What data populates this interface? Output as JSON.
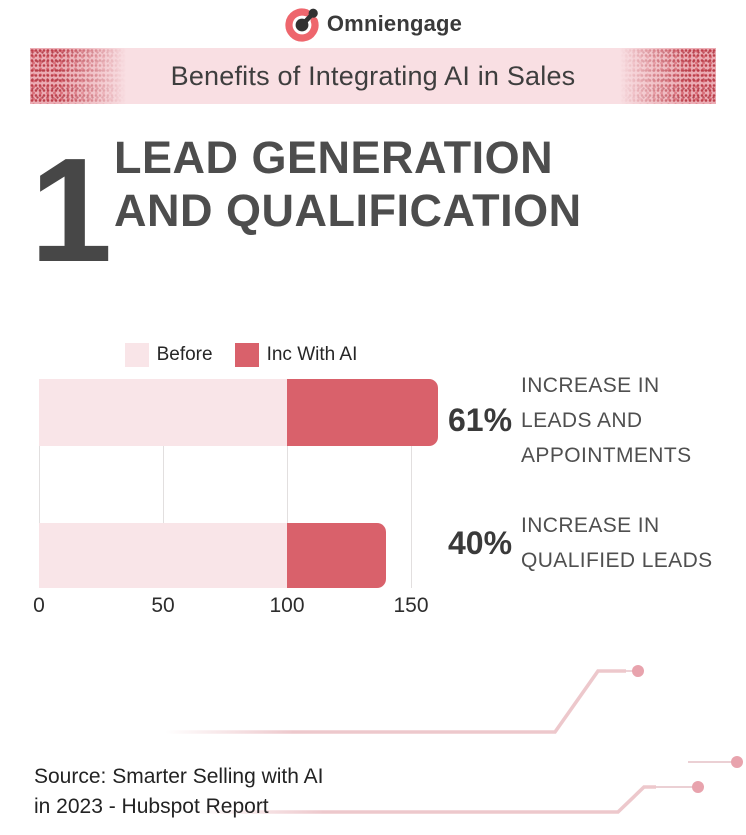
{
  "brand": {
    "name": "Omniengage",
    "logo_icon": "linked-nodes-ring",
    "logo_ring_color": "#ee666d",
    "logo_node_color": "#323232"
  },
  "banner": {
    "title": "Benefits of Integrating AI in Sales",
    "bg_color": "#f9dfe3",
    "edge_spray_color": "#cb5560"
  },
  "section": {
    "number": "1",
    "title_line1": "LEAD GENERATION",
    "title_line2": "AND QUALIFICATION"
  },
  "chart_data": {
    "type": "bar",
    "orientation": "horizontal",
    "stacked": true,
    "categories": [
      "Leads and appointments",
      "Qualified leads"
    ],
    "series": [
      {
        "name": "Before",
        "color": "#f9e5e8",
        "values": [
          100,
          100
        ]
      },
      {
        "name": "Inc With AI",
        "color": "#d9616b",
        "values": [
          61,
          40
        ]
      }
    ],
    "x_ticks": [
      0,
      50,
      100,
      150
    ],
    "xlim": [
      0,
      163
    ],
    "grid": true,
    "legend_position": "top",
    "gridline_color": "#e2dfdf"
  },
  "callouts": [
    {
      "value": "61%",
      "label": "INCREASE IN LEADS AND APPOINTMENTS"
    },
    {
      "value": "40%",
      "label": "INCREASE IN QUALIFIED LEADS"
    }
  ],
  "source": {
    "line1": "Source: Smarter Selling with AI",
    "line2": "in 2023 - Hubspot Report"
  },
  "decor": {
    "trace_color": "#edc8cc",
    "dot_color": "#e8a3ad"
  }
}
